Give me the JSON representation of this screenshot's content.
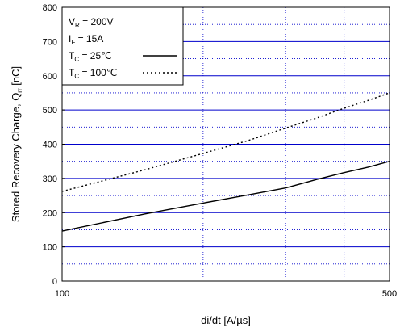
{
  "chart_data": {
    "type": "line",
    "title": "",
    "xlabel": "di/dt  [A/µs]",
    "ylabel": {
      "main": "Stored Recovery Charge, Q",
      "sub": "rr",
      "unit": " [nC]"
    },
    "x_scale": "log",
    "xlim": [
      100,
      500
    ],
    "ylim": [
      0,
      800
    ],
    "x_ticks": [
      {
        "value": 100,
        "label": "100"
      },
      {
        "value": 500,
        "label": "500"
      }
    ],
    "y_ticks": [
      {
        "value": 0,
        "label": "0"
      },
      {
        "value": 100,
        "label": "100"
      },
      {
        "value": 200,
        "label": "200"
      },
      {
        "value": 300,
        "label": "300"
      },
      {
        "value": 400,
        "label": "400"
      },
      {
        "value": 500,
        "label": "500"
      },
      {
        "value": 600,
        "label": "600"
      },
      {
        "value": 700,
        "label": "700"
      },
      {
        "value": 800,
        "label": "800"
      }
    ],
    "grid": {
      "major_y": [
        100,
        200,
        300,
        400,
        500,
        600,
        700
      ],
      "minor_y": [
        50,
        150,
        250,
        350,
        450,
        550,
        650,
        750
      ],
      "x": [
        200,
        300,
        400
      ],
      "color": "#0000cc"
    },
    "legend": {
      "placement": "top-left",
      "conditions": [
        {
          "main": "V",
          "sub": "R",
          "rest": " = 200V"
        },
        {
          "main": "I",
          "sub": "F",
          "rest": " = 15A"
        }
      ]
    },
    "series": [
      {
        "name": {
          "main": "T",
          "sub": "C",
          "rest": " =   25℃"
        },
        "style": "solid",
        "x": [
          100,
          150,
          200,
          250,
          300,
          350,
          400,
          450,
          500
        ],
        "y": [
          146,
          196,
          228,
          252,
          272,
          297,
          317,
          333,
          350
        ]
      },
      {
        "name": {
          "main": "T",
          "sub": "C",
          "rest": " = 100℃"
        },
        "style": "dotted",
        "x": [
          100,
          150,
          200,
          250,
          300,
          350,
          400,
          450,
          500
        ],
        "y": [
          262,
          325,
          373,
          411,
          447,
          477,
          505,
          528,
          550
        ]
      }
    ]
  }
}
